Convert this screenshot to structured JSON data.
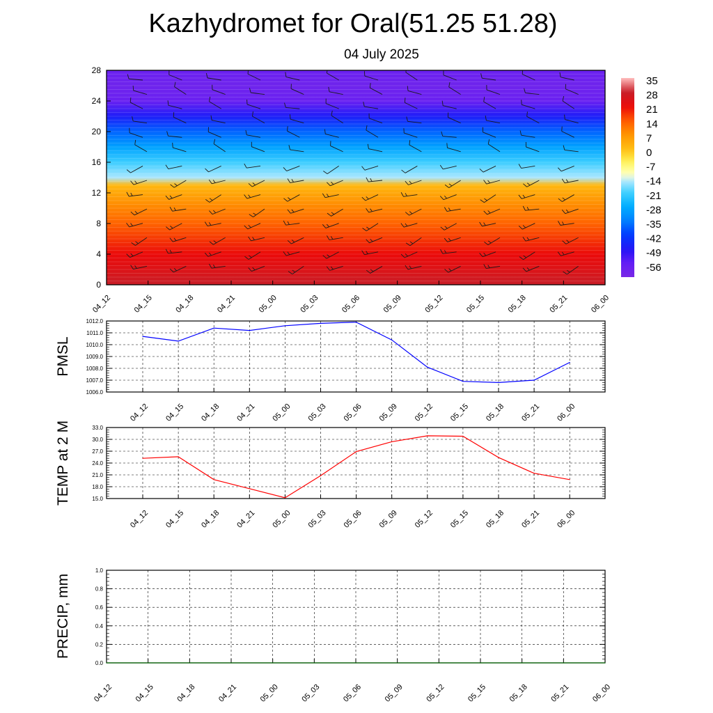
{
  "title": "Kazhydromet for Oral(51.25 51.28)",
  "subtitle": "04 July 2025",
  "chart_data": [
    {
      "type": "heatmap",
      "xticks": [
        "04_12",
        "04_15",
        "04_18",
        "04_21",
        "05_00",
        "05_03",
        "05_06",
        "05_09",
        "05_12",
        "05_15",
        "05_18",
        "05_21",
        "06_00"
      ],
      "yticks": [
        0,
        4,
        8,
        12,
        16,
        20,
        24,
        28
      ],
      "ylim": [
        0,
        28
      ],
      "colorbar_labels": [
        "35",
        "28",
        "21",
        "14",
        "7",
        "0",
        "-7",
        "-14",
        "-21",
        "-28",
        "-35",
        "-42",
        "-49",
        "-56"
      ],
      "value_range": [
        -63,
        35
      ],
      "temperature_by_height": {
        "heights": [
          0,
          2,
          4,
          6,
          8,
          10,
          12,
          13,
          14,
          16,
          18,
          20,
          22,
          24,
          26,
          28
        ],
        "values": [
          28,
          24,
          21,
          17,
          13,
          9,
          4,
          1,
          -16,
          -22,
          -30,
          -38,
          -48,
          -58,
          -60,
          -58
        ]
      },
      "wind_barbs": true
    },
    {
      "type": "line",
      "ylabel": "PMSL",
      "x": [
        "04_12",
        "04_15",
        "04_18",
        "04_21",
        "05_00",
        "05_03",
        "05_06",
        "05_09",
        "05_12",
        "05_15",
        "05_18",
        "05_21",
        "06_00"
      ],
      "ylim": [
        1006.0,
        1012.0
      ],
      "yticks": [
        "1006.0",
        "1007.0",
        "1008.0",
        "1009.0",
        "1010.0",
        "1011.0",
        "1012.0"
      ],
      "series": [
        {
          "color": "#0000ff",
          "values": [
            1010.7,
            1010.3,
            1011.4,
            1011.2,
            1011.6,
            1011.8,
            1011.9,
            1010.4,
            1008.1,
            1006.9,
            1006.8,
            1007.0,
            1008.5
          ]
        }
      ]
    },
    {
      "type": "line",
      "ylabel": "TEMP at 2 M",
      "x": [
        "04_12",
        "04_15",
        "04_18",
        "04_21",
        "05_00",
        "05_03",
        "05_06",
        "05_09",
        "05_12",
        "05_15",
        "05_18",
        "05_21",
        "06_00"
      ],
      "ylim": [
        15.0,
        33.0
      ],
      "yticks": [
        "15.0",
        "18.0",
        "21.0",
        "24.0",
        "27.0",
        "30.0",
        "33.0"
      ],
      "series": [
        {
          "color": "#ff0000",
          "values": [
            25.2,
            25.6,
            19.8,
            17.5,
            15.2,
            20.8,
            26.9,
            29.4,
            30.9,
            30.8,
            25.4,
            21.4,
            19.8
          ]
        }
      ]
    },
    {
      "type": "line",
      "ylabel": "PRECIP, mm",
      "x": [
        "04_12",
        "04_15",
        "04_18",
        "04_21",
        "05_00",
        "05_03",
        "05_06",
        "05_09",
        "05_12",
        "05_15",
        "05_18",
        "05_21",
        "06_00"
      ],
      "ylim": [
        0.0,
        1.0
      ],
      "yticks": [
        "0.0",
        "0.2",
        "0.4",
        "0.6",
        "0.8",
        "1.0"
      ],
      "series": [
        {
          "color": "#006400",
          "values": [
            0,
            0,
            0,
            0,
            0,
            0,
            0,
            0,
            0,
            0,
            0,
            0,
            0
          ]
        }
      ]
    }
  ]
}
